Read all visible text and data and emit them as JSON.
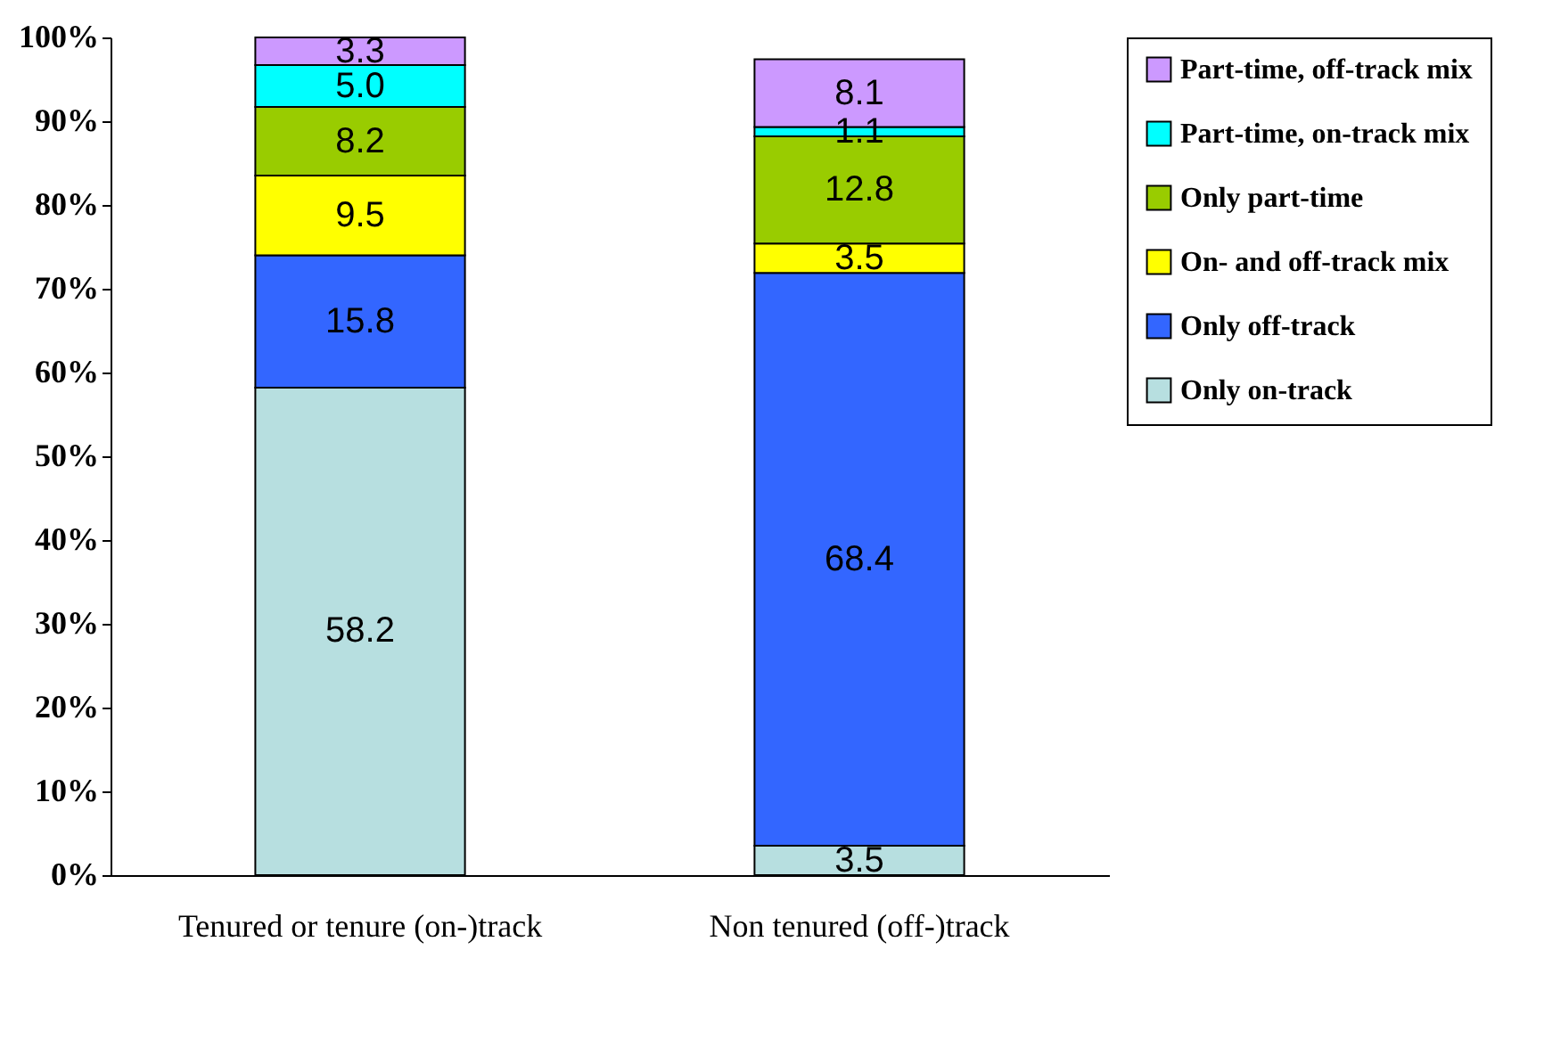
{
  "chart_data": {
    "type": "bar",
    "stacked": true,
    "categories": [
      "Tenured or tenure (on-)track",
      "Non tenured (off-)track"
    ],
    "series": [
      {
        "name": "Only on-track",
        "color": "#b7dfe0",
        "values": [
          58.2,
          3.5
        ]
      },
      {
        "name": "Only off-track",
        "color": "#3366ff",
        "values": [
          15.8,
          68.4
        ]
      },
      {
        "name": "On- and off-track mix",
        "color": "#ffff00",
        "values": [
          9.5,
          3.5
        ]
      },
      {
        "name": "Only part-time",
        "color": "#99cc00",
        "values": [
          8.2,
          12.8
        ]
      },
      {
        "name": "Part-time, on-track mix",
        "color": "#00ffff",
        "values": [
          5.0,
          1.1
        ],
        "value_labels": [
          "5.0",
          "1.1"
        ]
      },
      {
        "name": "Part-time, off-track mix",
        "color": "#cc99ff",
        "values": [
          3.3,
          8.1
        ]
      }
    ],
    "ylim": [
      0,
      100
    ],
    "yticks": [
      {
        "value": 0,
        "label": "0%"
      },
      {
        "value": 10,
        "label": "10%"
      },
      {
        "value": 20,
        "label": "20%"
      },
      {
        "value": 30,
        "label": "30%"
      },
      {
        "value": 40,
        "label": "40%"
      },
      {
        "value": 50,
        "label": "50%"
      },
      {
        "value": 60,
        "label": "60%"
      },
      {
        "value": 70,
        "label": "70%"
      },
      {
        "value": 80,
        "label": "80%"
      },
      {
        "value": 90,
        "label": "90%"
      },
      {
        "value": 100,
        "label": "100%"
      }
    ],
    "data_labels": true,
    "legend": "right",
    "grid": false
  }
}
